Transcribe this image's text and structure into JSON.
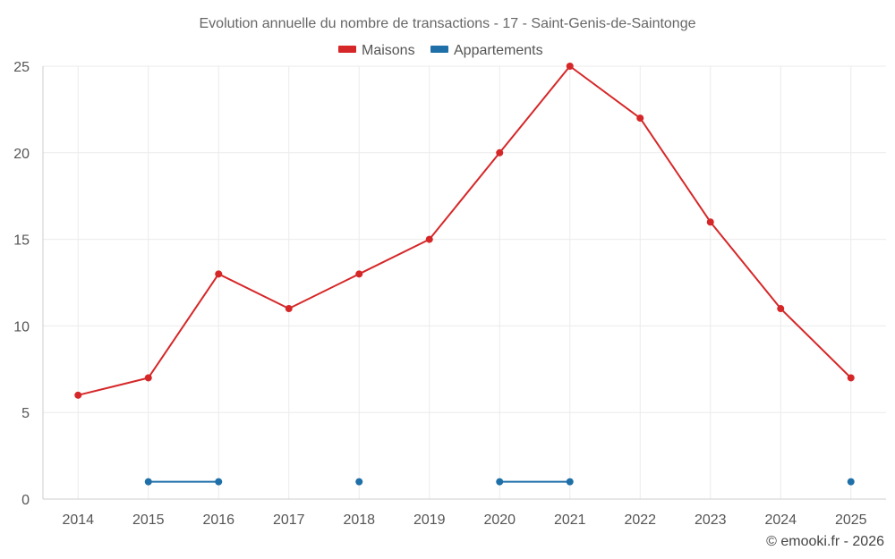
{
  "chart_data": {
    "type": "line",
    "title": "Evolution annuelle du nombre de transactions - 17 - Saint-Genis-de-Saintonge",
    "categories": [
      "2014",
      "2015",
      "2016",
      "2017",
      "2018",
      "2019",
      "2020",
      "2021",
      "2022",
      "2023",
      "2024",
      "2025"
    ],
    "series": [
      {
        "name": "Maisons",
        "color": "#d62728",
        "values": [
          6,
          7,
          13,
          11,
          13,
          15,
          20,
          25,
          22,
          16,
          11,
          7
        ]
      },
      {
        "name": "Appartements",
        "color": "#1f6fa8",
        "values": [
          null,
          1,
          1,
          null,
          1,
          null,
          1,
          1,
          null,
          null,
          null,
          1
        ]
      }
    ],
    "ylim": [
      0,
      25
    ],
    "yticks": [
      0,
      5,
      10,
      15,
      20,
      25
    ],
    "xlabel": "",
    "ylabel": "",
    "grid": true,
    "legend": "top-center"
  },
  "footer": "© emooki.fr - 2026"
}
